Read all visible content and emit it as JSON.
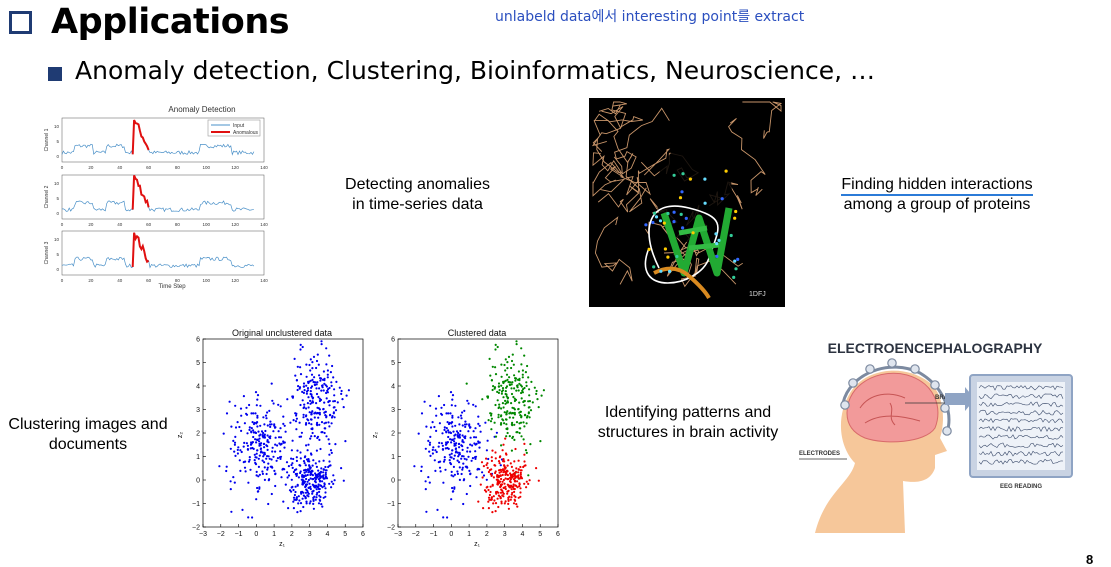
{
  "title": "Applications",
  "note": "unlabeld data에서 interesting point를 extract",
  "bullet": "Anomaly detection, Clustering, Bioinformatics, Neuroscience, …",
  "anomaly_fig": {
    "title": "Anomaly Detection",
    "legend": [
      "Input",
      "Anomalous"
    ],
    "channels": [
      "Channel 1",
      "Channel 2",
      "Channel 3"
    ],
    "x_ticks": [
      "0",
      "20",
      "40",
      "60",
      "80",
      "100",
      "120",
      "140"
    ],
    "y_ticks": [
      "0",
      "5",
      "10"
    ],
    "xlabel": "Time Step",
    "colors": {
      "input": "#4a90c8",
      "anomaly": "#e01010"
    }
  },
  "protein_label": "1DFJ",
  "scatter_left": {
    "title": "Original unclustered data",
    "x_ticks": [
      "−3",
      "−2",
      "−1",
      "0",
      "1",
      "2",
      "3",
      "4",
      "5",
      "6"
    ],
    "y_ticks": [
      "−2",
      "−1",
      "0",
      "1",
      "2",
      "3",
      "4",
      "5",
      "6"
    ],
    "xlabel": "z₁",
    "ylabel": "z₂"
  },
  "scatter_right": {
    "title": "Clustered data",
    "x_ticks": [
      "−3",
      "−2",
      "−1",
      "0",
      "1",
      "2",
      "3",
      "4",
      "5",
      "6"
    ],
    "y_ticks": [
      "−2",
      "−1",
      "0",
      "1",
      "2",
      "3",
      "4",
      "5",
      "6"
    ],
    "xlabel": "z₁",
    "ylabel": "z₂"
  },
  "captions": {
    "anomaly": [
      "Detecting anomalies",
      "in time-series data"
    ],
    "protein": [
      "Finding hidden interactions",
      "among a group of proteins"
    ],
    "clustering": [
      "Clustering images and",
      "documents"
    ],
    "brain": [
      "Identifying patterns and",
      "structures in brain activity"
    ]
  },
  "eeg": {
    "title": "ELECTROENCEPHALOGRAPHY",
    "brain_label": "BRAIN",
    "electrodes_label": "ELECTRODES",
    "reading_label": "EEG READING"
  },
  "page_number": "8"
}
